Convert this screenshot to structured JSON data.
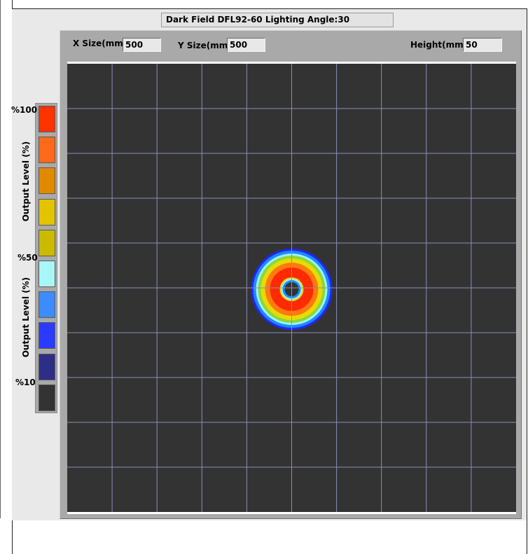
{
  "title": "Dark Field DFL92-60 Lighting Angle:30",
  "fields": {
    "x_size": {
      "label": "X Size(mm)",
      "value": "500"
    },
    "y_size": {
      "label": "Y Size(mm)",
      "value": "500"
    },
    "height": {
      "label": "Height(mm)",
      "value": "50"
    }
  },
  "legend": {
    "pct_100": "%100",
    "pct_50": "%50",
    "pct_10": "%10",
    "axis_label_top": "Output Level (%)",
    "axis_label_bottom": "Output Level (%)",
    "colors": [
      "#ff3300",
      "#ff6a1a",
      "#e08a00",
      "#e2c400",
      "#cbbb00",
      "#a8f6f8",
      "#3d8cff",
      "#2a3aff",
      "#2e2e86",
      "#333333"
    ]
  },
  "plot": {
    "background": "#333333",
    "grid_color": "#8a8fb8",
    "grid_divisions": 10,
    "ring_colors": {
      "outer_halo": "#2424ff",
      "blue": "#1a8cff",
      "cyan": "#a0f0ff",
      "green": "#8cd73a",
      "yellow": "#e6dc00",
      "orange": "#ff7a10",
      "red": "#ff2a00",
      "hole": "#333333"
    }
  }
}
